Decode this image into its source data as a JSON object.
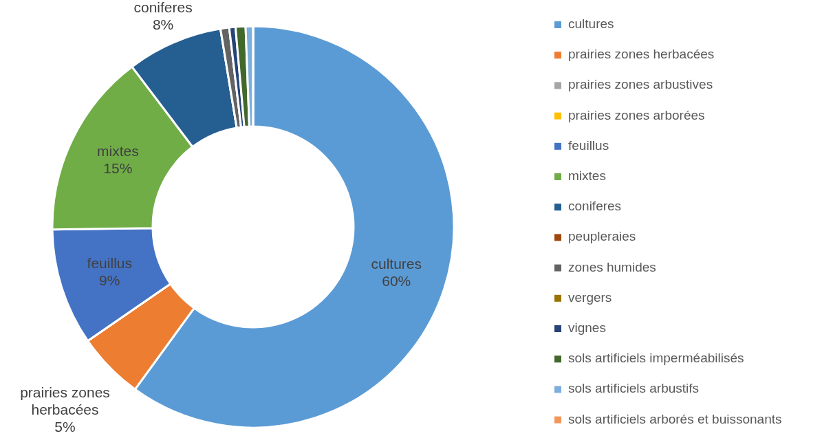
{
  "chart_data": {
    "type": "donut",
    "categories": [
      "cultures",
      "prairies zones herbacées",
      "prairies zones arbustives",
      "prairies zones arborées",
      "feuillus",
      "mixtes",
      "coniferes",
      "peupleraies",
      "zones humides",
      "vergers",
      "vignes",
      "sols artificiels imperméabilisés",
      "sols artificiels arbustifs",
      "sols artificiels arborés et buissonants"
    ],
    "values": [
      60,
      5.4,
      0,
      0,
      9.4,
      14.9,
      7.7,
      0,
      0.7,
      0,
      0.5,
      0.8,
      0.6,
      0
    ],
    "colors": [
      "#5b9bd5",
      "#ed7d31",
      "#a5a5a5",
      "#ffc000",
      "#4472c4",
      "#70ad47",
      "#255e91",
      "#9e480e",
      "#636363",
      "#997300",
      "#264478",
      "#43682b",
      "#7cafdd",
      "#f1975a"
    ],
    "value_labels": [
      "60%",
      "5%",
      null,
      null,
      "9%",
      "15%",
      "8%",
      null,
      null,
      null,
      null,
      null,
      null,
      null
    ],
    "legend": "right"
  }
}
